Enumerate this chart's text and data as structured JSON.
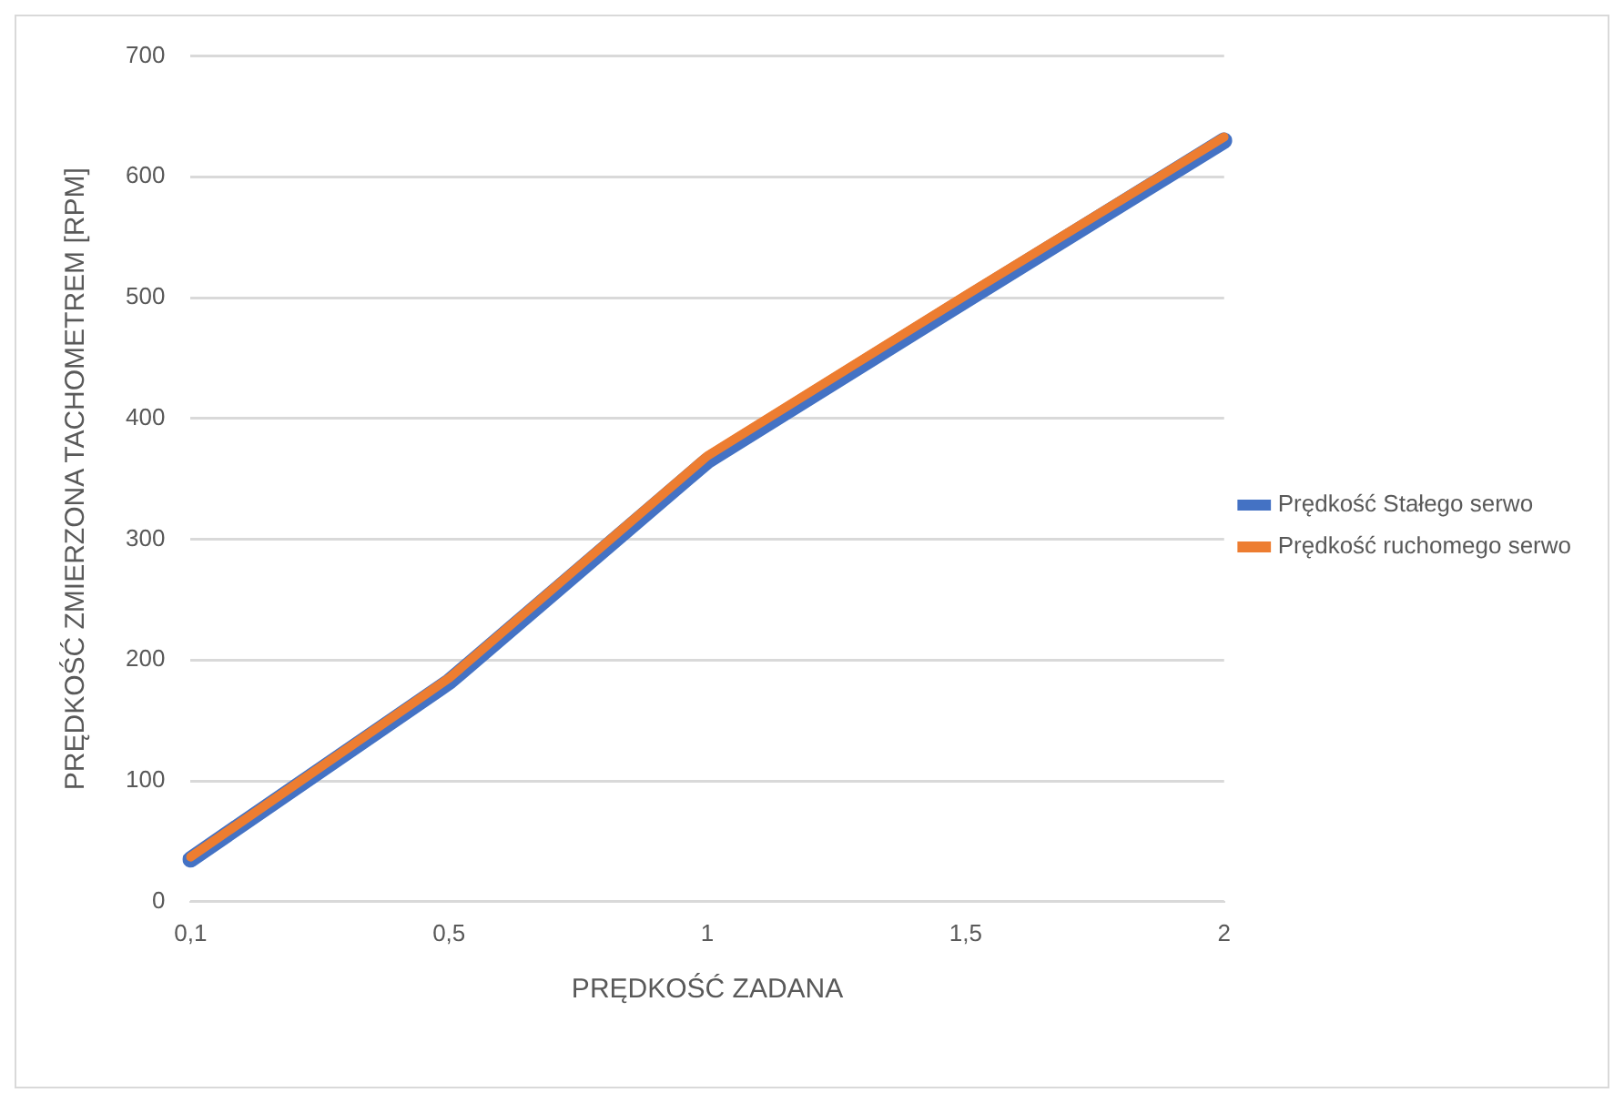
{
  "chart_data": {
    "type": "line",
    "xlabel": "PRĘDKOŚĆ ZADANA",
    "ylabel": "PRĘDKOŚĆ ZMIERZONA TACHOMETREM [RPM]",
    "categories": [
      "0,1",
      "0,5",
      "1",
      "1,5",
      "2"
    ],
    "series": [
      {
        "name": "Prędkość Stałego serwo",
        "color": "#4472c4",
        "values": [
          35,
          182,
          365,
          498,
          630
        ]
      },
      {
        "name": "Prędkość ruchomego serwo",
        "color": "#ed7d31",
        "values": [
          37,
          185,
          369,
          502,
          633
        ]
      }
    ],
    "ylim": [
      0,
      700
    ],
    "yticks": [
      0,
      100,
      200,
      300,
      400,
      500,
      600,
      700
    ],
    "grid": "y",
    "legend": "right",
    "marker": "none",
    "line_style": "solid"
  }
}
